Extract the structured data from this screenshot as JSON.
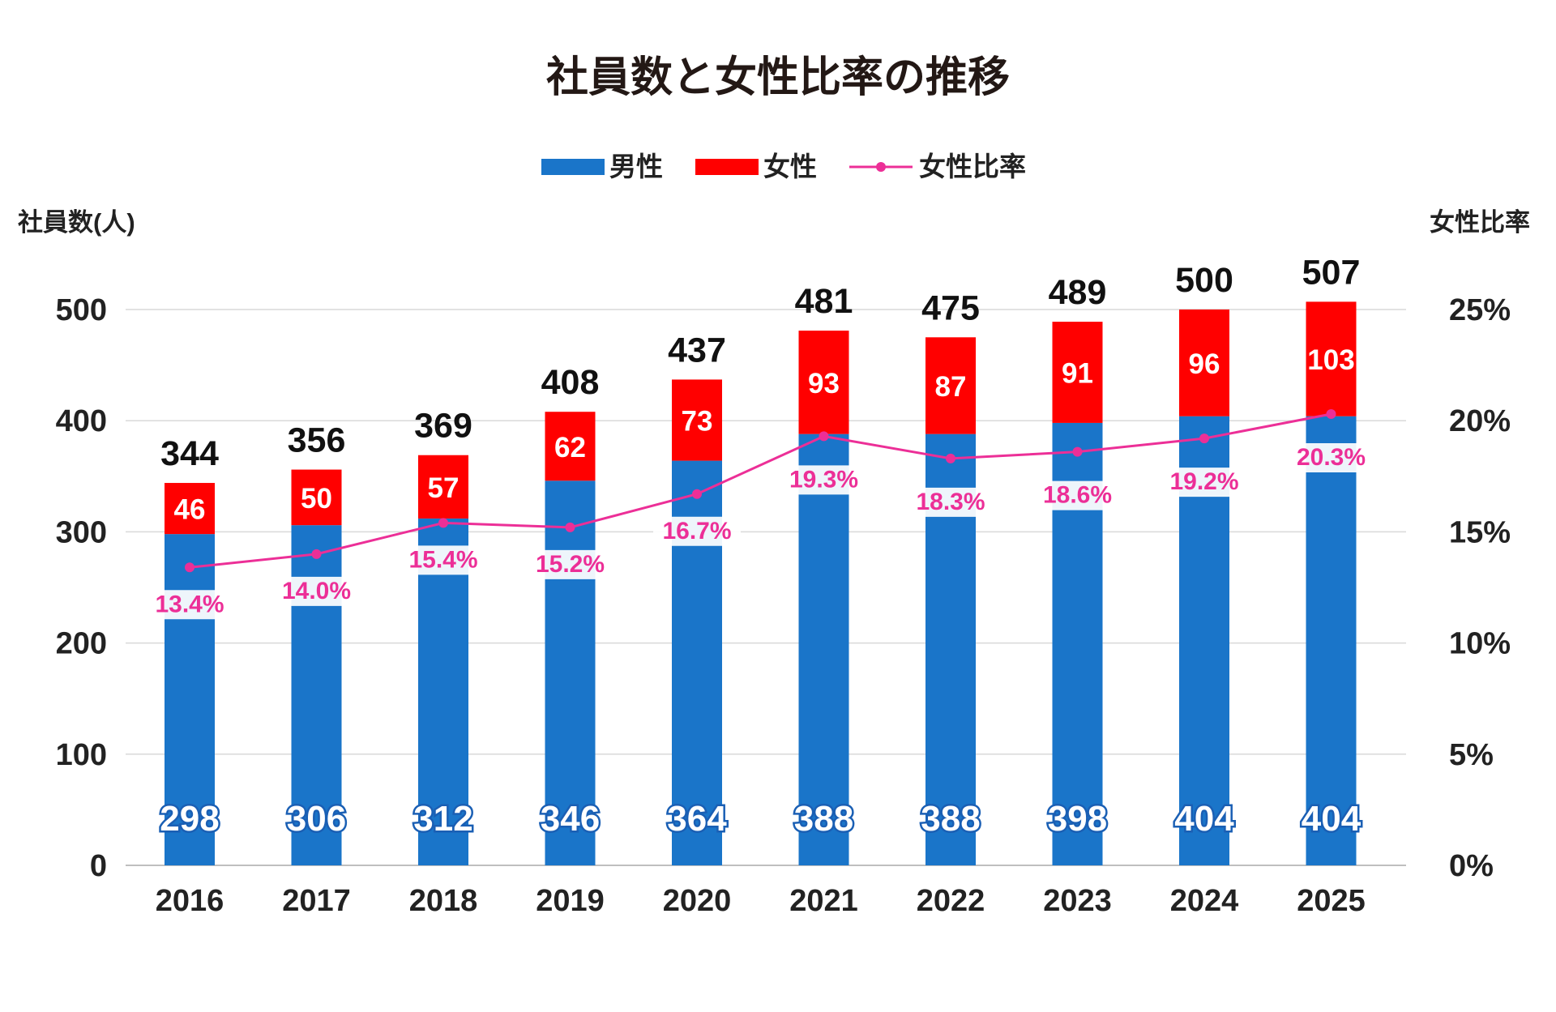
{
  "chart_data": {
    "type": "bar",
    "stacked": true,
    "title": "社員数と女性比率の推移",
    "ylabel": "社員数(人)",
    "y2label": "女性比率",
    "ylim": [
      0,
      500
    ],
    "y2lim": [
      0,
      25
    ],
    "yticks": [
      "0",
      "100",
      "200",
      "300",
      "400",
      "500"
    ],
    "y2ticks": [
      "0%",
      "5%",
      "10%",
      "15%",
      "20%",
      "25%"
    ],
    "grid": true,
    "legend_position": "top",
    "categories": [
      "2016",
      "2017",
      "2018",
      "2019",
      "2020",
      "2021",
      "2022",
      "2023",
      "2024",
      "2025"
    ],
    "series": [
      {
        "name": "男性",
        "type": "bar",
        "color": "#1a75c9",
        "values": [
          298,
          306,
          312,
          346,
          364,
          388,
          388,
          398,
          404,
          404
        ]
      },
      {
        "name": "女性",
        "type": "bar",
        "color": "#ff0000",
        "values": [
          46,
          50,
          57,
          62,
          73,
          93,
          87,
          91,
          96,
          103
        ]
      },
      {
        "name": "女性比率",
        "type": "line",
        "axis": "right",
        "color": "#ec2f97",
        "values": [
          13.4,
          14.0,
          15.4,
          15.2,
          16.7,
          19.3,
          18.3,
          18.6,
          19.2,
          20.3
        ],
        "labels": [
          "13.4%",
          "14.0%",
          "15.4%",
          "15.2%",
          "16.7%",
          "19.3%",
          "18.3%",
          "18.6%",
          "19.2%",
          "20.3%"
        ]
      }
    ],
    "totals": [
      344,
      356,
      369,
      408,
      437,
      481,
      475,
      489,
      500,
      507
    ]
  }
}
